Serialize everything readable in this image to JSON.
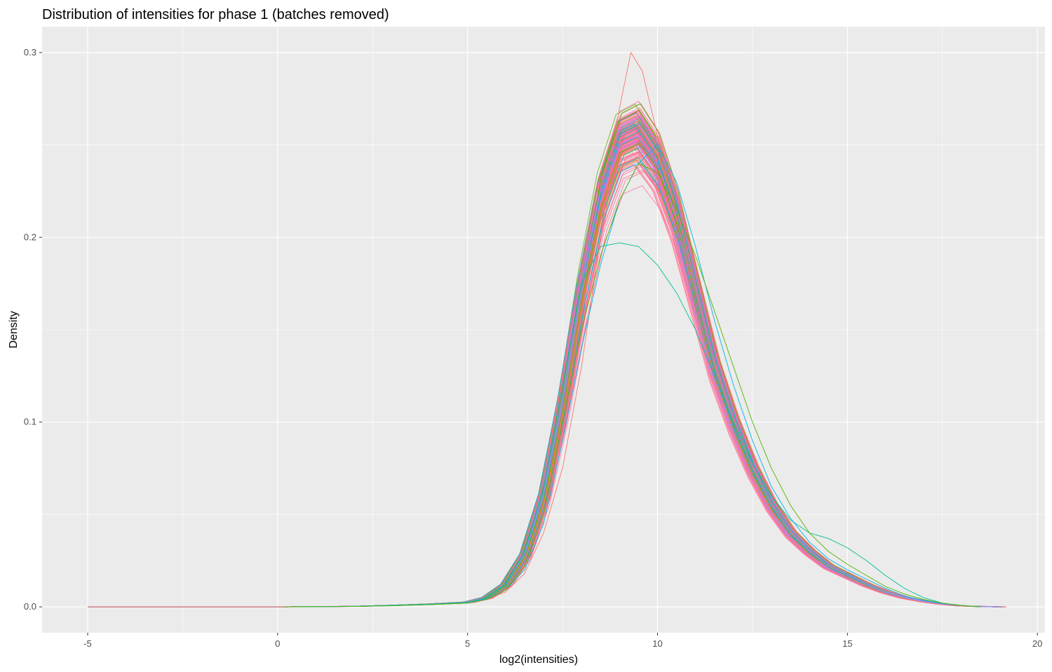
{
  "chart_data": {
    "type": "line",
    "title": "Distribution of intensities for phase 1 (batches removed)",
    "xlabel": "log2(intensities)",
    "ylabel": "Density",
    "xlim": [
      -6.2,
      20.2
    ],
    "ylim": [
      -0.014,
      0.314
    ],
    "x_ticks": [
      -5,
      0,
      5,
      10,
      15,
      20
    ],
    "y_ticks": [
      0.0,
      0.1,
      0.2,
      0.3
    ],
    "x_tick_labels": [
      "-5",
      "0",
      "5",
      "10",
      "15",
      "20"
    ],
    "y_tick_labels": [
      "0.0",
      "0.1",
      "0.2",
      "0.3"
    ],
    "grid": true,
    "legend": "none",
    "panel_color": "#ebebeb",
    "grid_color": "#ffffff",
    "series_summary": "many overlapping density curves (one per sample)",
    "sample_count_approx": 150,
    "palette": [
      "#F8766D",
      "#C49A00",
      "#53B400",
      "#00C094",
      "#00B6EB",
      "#A58AFF",
      "#FB61D7",
      "#FF6C91"
    ],
    "peak_x_range": [
      8.9,
      9.9
    ],
    "peak_y_range": [
      0.196,
      0.3
    ],
    "series": [
      {
        "x": [
          -5,
          0,
          2,
          3,
          4,
          5,
          5.5,
          6,
          6.5,
          7,
          7.5,
          8,
          8.5,
          9,
          9.5,
          10,
          10.5,
          11,
          11.5,
          12,
          12.5,
          13,
          13.5,
          14,
          14.5,
          15,
          15.5,
          16,
          16.5,
          17,
          17.5,
          18,
          19
        ],
        "y": [
          0.0,
          0.0,
          0.0003,
          0.0008,
          0.0015,
          0.0025,
          0.005,
          0.012,
          0.028,
          0.06,
          0.11,
          0.17,
          0.22,
          0.25,
          0.255,
          0.24,
          0.21,
          0.17,
          0.13,
          0.1,
          0.075,
          0.055,
          0.04,
          0.03,
          0.022,
          0.017,
          0.012,
          0.008,
          0.005,
          0.003,
          0.0015,
          0.0005,
          0.0
        ]
      },
      {
        "x": [
          0,
          2,
          3,
          4,
          5,
          5.5,
          6,
          6.5,
          7,
          7.5,
          8,
          8.5,
          9,
          9.3,
          9.6,
          10,
          10.5,
          11,
          11.5,
          12,
          12.5,
          13,
          13.5,
          14,
          14.5,
          15,
          15.5,
          16,
          16.5,
          17,
          17.5,
          18,
          18.5
        ],
        "y": [
          0.0,
          0.0002,
          0.0006,
          0.0012,
          0.002,
          0.004,
          0.008,
          0.018,
          0.04,
          0.075,
          0.13,
          0.2,
          0.27,
          0.3,
          0.29,
          0.255,
          0.21,
          0.165,
          0.125,
          0.095,
          0.07,
          0.052,
          0.038,
          0.028,
          0.021,
          0.016,
          0.011,
          0.007,
          0.0045,
          0.0025,
          0.0012,
          0.0004,
          0.0
        ]
      },
      {
        "x": [
          0,
          2,
          3,
          4,
          5,
          5.5,
          6,
          6.5,
          7,
          7.5,
          8,
          8.5,
          9,
          9.5,
          10,
          10.5,
          11,
          11.5,
          12,
          12.5,
          13,
          13.5,
          14,
          14.5,
          15,
          15.5,
          16,
          16.5,
          17,
          17.5,
          18,
          18.5
        ],
        "y": [
          0.0,
          0.0003,
          0.0008,
          0.0015,
          0.0025,
          0.005,
          0.012,
          0.03,
          0.065,
          0.12,
          0.175,
          0.195,
          0.197,
          0.195,
          0.185,
          0.17,
          0.15,
          0.125,
          0.1,
          0.078,
          0.06,
          0.047,
          0.04,
          0.037,
          0.032,
          0.025,
          0.017,
          0.01,
          0.005,
          0.002,
          0.0008,
          0.0
        ]
      },
      {
        "x": [
          0,
          2,
          3,
          4,
          5,
          5.5,
          6,
          6.5,
          7,
          7.5,
          8,
          8.5,
          9,
          9.5,
          10,
          10.5,
          11,
          11.5,
          12,
          12.5,
          13,
          13.5,
          14,
          14.5,
          15,
          15.5,
          16,
          16.5,
          17,
          17.5,
          18,
          18.5
        ],
        "y": [
          0.0,
          0.0002,
          0.0006,
          0.0012,
          0.002,
          0.004,
          0.009,
          0.02,
          0.045,
          0.09,
          0.14,
          0.185,
          0.22,
          0.24,
          0.25,
          0.23,
          0.195,
          0.155,
          0.12,
          0.09,
          0.065,
          0.048,
          0.035,
          0.026,
          0.02,
          0.015,
          0.01,
          0.006,
          0.0035,
          0.0018,
          0.0007,
          0.0
        ]
      },
      {
        "x": [
          0,
          2,
          3,
          4,
          5,
          5.5,
          6,
          6.5,
          7,
          7.5,
          8,
          8.5,
          9,
          9.5,
          10,
          10.5,
          11,
          11.5,
          12,
          12.5,
          13,
          13.5,
          14,
          14.5,
          15,
          15.5,
          16,
          16.5,
          17,
          17.5,
          18,
          18.5
        ],
        "y": [
          0.0,
          0.0002,
          0.0006,
          0.0012,
          0.002,
          0.004,
          0.009,
          0.022,
          0.05,
          0.1,
          0.15,
          0.19,
          0.22,
          0.24,
          0.235,
          0.215,
          0.19,
          0.16,
          0.13,
          0.1,
          0.075,
          0.055,
          0.04,
          0.03,
          0.023,
          0.017,
          0.011,
          0.007,
          0.004,
          0.002,
          0.0008,
          0.0
        ]
      }
    ]
  }
}
